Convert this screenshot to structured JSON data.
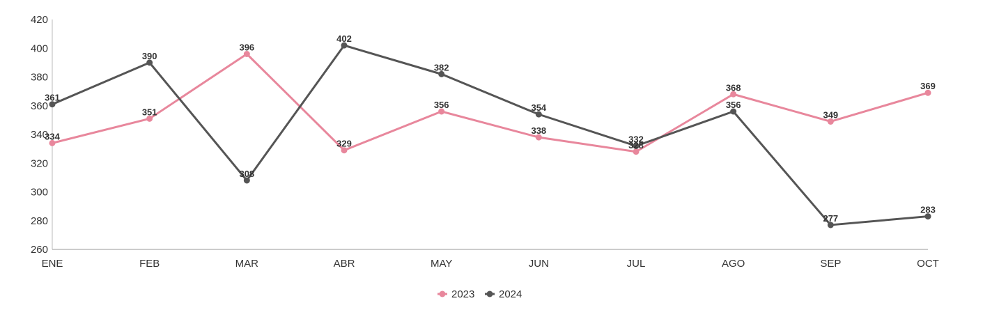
{
  "chart_data": {
    "type": "line",
    "title": "",
    "xlabel": "",
    "ylabel": "",
    "categories": [
      "ENE",
      "FEB",
      "MAR",
      "ABR",
      "MAY",
      "JUN",
      "JUL",
      "AGO",
      "SEP",
      "OCT"
    ],
    "ylim": [
      260,
      420
    ],
    "yticks": [
      260,
      280,
      300,
      320,
      340,
      360,
      380,
      400,
      420
    ],
    "grid": false,
    "legend_position": "bottom-center",
    "series": [
      {
        "name": "2023",
        "color": "#e8879c",
        "values": [
          334,
          351,
          396,
          329,
          356,
          338,
          328,
          368,
          349,
          369
        ]
      },
      {
        "name": "2024",
        "color": "#555555",
        "values": [
          361,
          390,
          308,
          402,
          382,
          354,
          332,
          356,
          277,
          283
        ]
      }
    ]
  }
}
